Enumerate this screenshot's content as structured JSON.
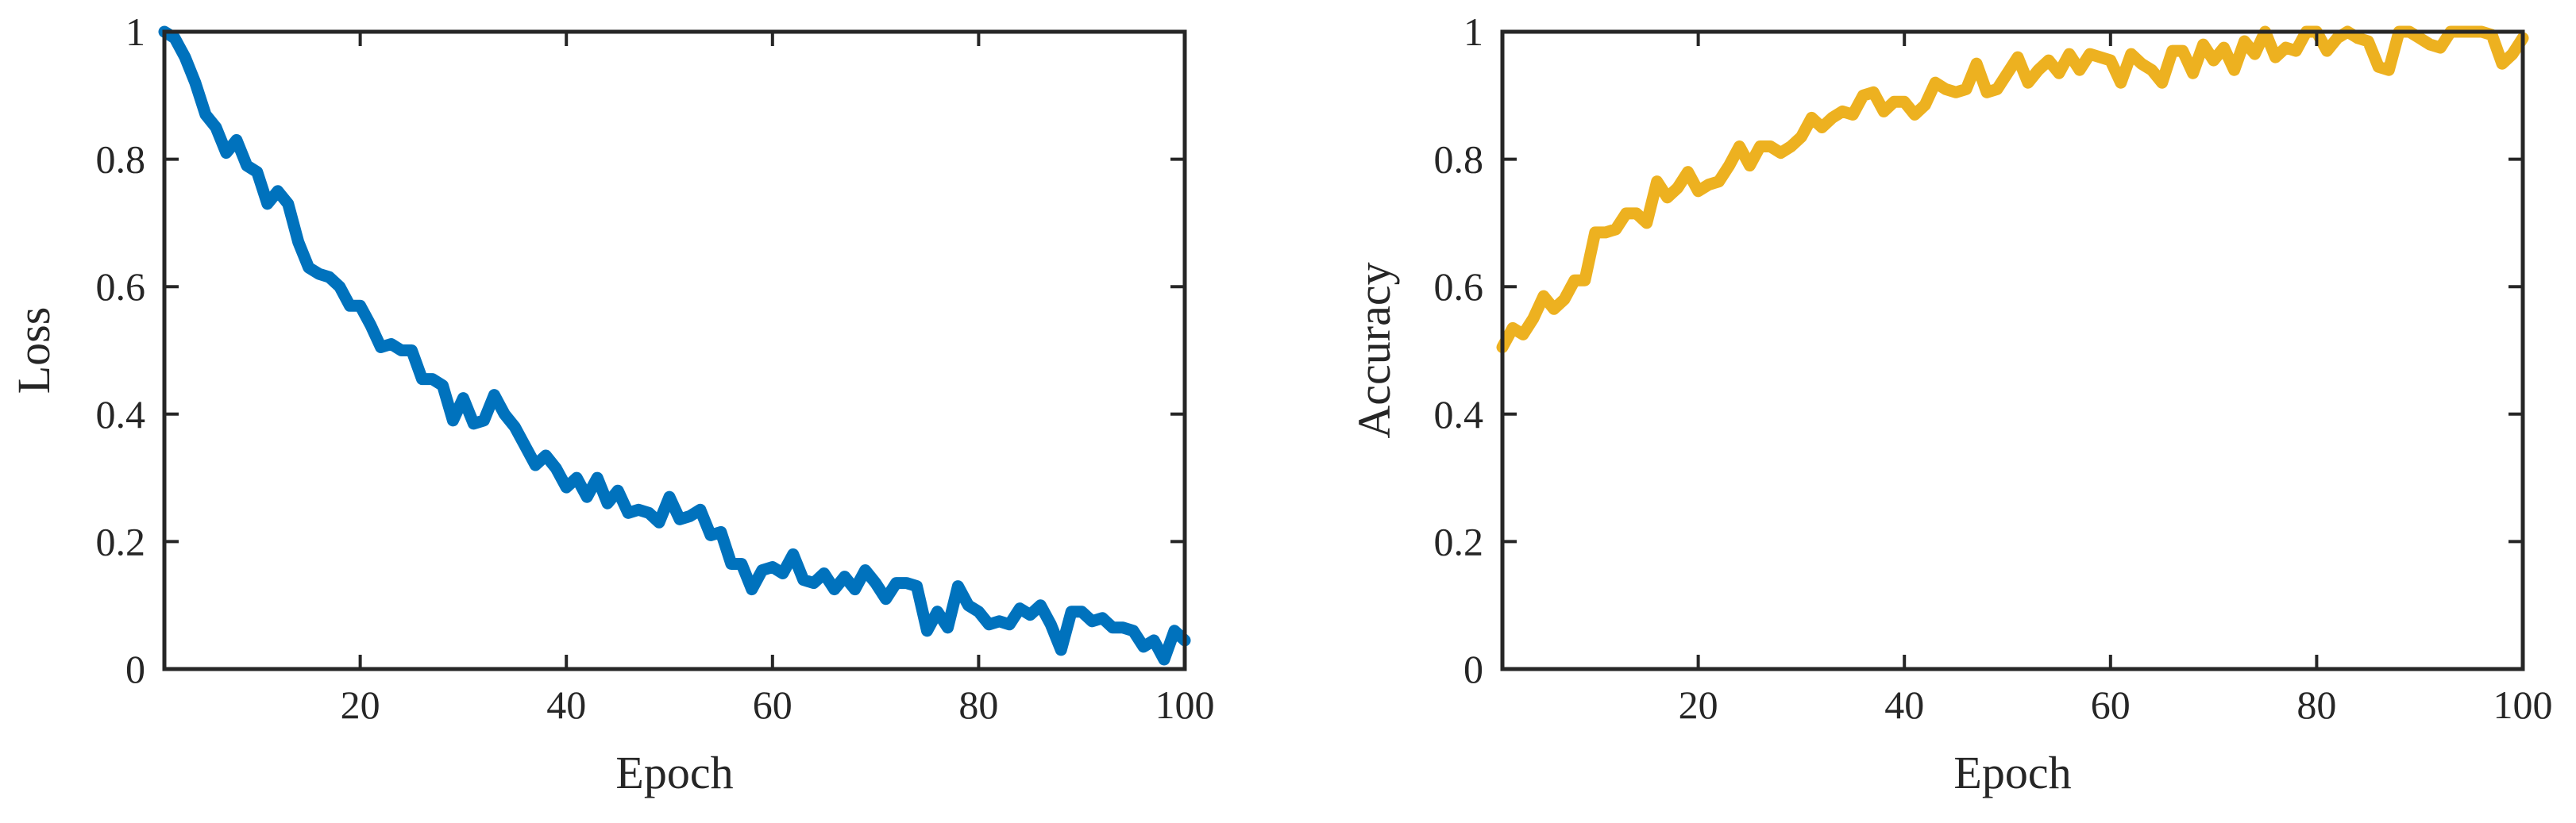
{
  "chart_data": [
    {
      "type": "line",
      "xlabel": "Epoch",
      "ylabel": "Loss",
      "xlim": [
        1,
        100
      ],
      "ylim": [
        0,
        1
      ],
      "xticks": [
        20,
        40,
        60,
        80,
        100
      ],
      "yticks": [
        0,
        0.2,
        0.4,
        0.6,
        0.8,
        1
      ],
      "ytick_labels": [
        "0",
        "0.2",
        "0.4",
        "0.6",
        "0.8",
        "1"
      ],
      "grid": false,
      "color": "#0072BD",
      "x": [
        1,
        2,
        3,
        4,
        5,
        6,
        7,
        8,
        9,
        10,
        11,
        12,
        13,
        14,
        15,
        16,
        17,
        18,
        19,
        20,
        21,
        22,
        23,
        24,
        25,
        26,
        27,
        28,
        29,
        30,
        31,
        32,
        33,
        34,
        35,
        36,
        37,
        38,
        39,
        40,
        41,
        42,
        43,
        44,
        45,
        46,
        47,
        48,
        49,
        50,
        51,
        52,
        53,
        54,
        55,
        56,
        57,
        58,
        59,
        60,
        61,
        62,
        63,
        64,
        65,
        66,
        67,
        68,
        69,
        70,
        71,
        72,
        73,
        74,
        75,
        76,
        77,
        78,
        79,
        80,
        81,
        82,
        83,
        84,
        85,
        86,
        87,
        88,
        89,
        90,
        91,
        92,
        93,
        94,
        95,
        96,
        97,
        98,
        99,
        100
      ],
      "values": [
        1.0,
        0.99,
        0.96,
        0.92,
        0.87,
        0.85,
        0.81,
        0.83,
        0.79,
        0.78,
        0.73,
        0.75,
        0.73,
        0.67,
        0.63,
        0.62,
        0.615,
        0.6,
        0.57,
        0.57,
        0.54,
        0.505,
        0.51,
        0.5,
        0.5,
        0.455,
        0.455,
        0.445,
        0.39,
        0.425,
        0.385,
        0.39,
        0.43,
        0.4,
        0.38,
        0.35,
        0.32,
        0.335,
        0.315,
        0.285,
        0.3,
        0.27,
        0.3,
        0.26,
        0.28,
        0.245,
        0.25,
        0.245,
        0.23,
        0.27,
        0.235,
        0.24,
        0.25,
        0.21,
        0.215,
        0.165,
        0.165,
        0.125,
        0.155,
        0.16,
        0.15,
        0.18,
        0.14,
        0.135,
        0.15,
        0.125,
        0.145,
        0.125,
        0.155,
        0.135,
        0.11,
        0.135,
        0.135,
        0.13,
        0.06,
        0.09,
        0.065,
        0.13,
        0.1,
        0.09,
        0.07,
        0.075,
        0.07,
        0.095,
        0.085,
        0.1,
        0.07,
        0.03,
        0.09,
        0.09,
        0.075,
        0.08,
        0.065,
        0.065,
        0.06,
        0.035,
        0.045,
        0.015,
        0.06,
        0.045
      ]
    },
    {
      "type": "line",
      "xlabel": "Epoch",
      "ylabel": "Accuracy",
      "xlim": [
        1,
        100
      ],
      "ylim": [
        0,
        1
      ],
      "xticks": [
        20,
        40,
        60,
        80,
        100
      ],
      "yticks": [
        0,
        0.2,
        0.4,
        0.6,
        0.8,
        1
      ],
      "ytick_labels": [
        "0",
        "0.2",
        "0.4",
        "0.6",
        "0.8",
        "1"
      ],
      "grid": false,
      "color": "#EDB120",
      "x": [
        1,
        2,
        3,
        4,
        5,
        6,
        7,
        8,
        9,
        10,
        11,
        12,
        13,
        14,
        15,
        16,
        17,
        18,
        19,
        20,
        21,
        22,
        23,
        24,
        25,
        26,
        27,
        28,
        29,
        30,
        31,
        32,
        33,
        34,
        35,
        36,
        37,
        38,
        39,
        40,
        41,
        42,
        43,
        44,
        45,
        46,
        47,
        48,
        49,
        50,
        51,
        52,
        53,
        54,
        55,
        56,
        57,
        58,
        59,
        60,
        61,
        62,
        63,
        64,
        65,
        66,
        67,
        68,
        69,
        70,
        71,
        72,
        73,
        74,
        75,
        76,
        77,
        78,
        79,
        80,
        81,
        82,
        83,
        84,
        85,
        86,
        87,
        88,
        89,
        90,
        91,
        92,
        93,
        94,
        95,
        96,
        97,
        98,
        99,
        100
      ],
      "values": [
        0.505,
        0.535,
        0.525,
        0.55,
        0.585,
        0.565,
        0.58,
        0.61,
        0.61,
        0.685,
        0.685,
        0.69,
        0.715,
        0.715,
        0.7,
        0.765,
        0.74,
        0.755,
        0.78,
        0.75,
        0.76,
        0.765,
        0.79,
        0.82,
        0.79,
        0.82,
        0.82,
        0.81,
        0.82,
        0.835,
        0.865,
        0.85,
        0.865,
        0.875,
        0.87,
        0.9,
        0.905,
        0.875,
        0.89,
        0.89,
        0.87,
        0.885,
        0.92,
        0.91,
        0.905,
        0.91,
        0.95,
        0.905,
        0.91,
        0.935,
        0.96,
        0.92,
        0.94,
        0.955,
        0.935,
        0.965,
        0.94,
        0.965,
        0.96,
        0.955,
        0.92,
        0.965,
        0.95,
        0.94,
        0.92,
        0.97,
        0.97,
        0.935,
        0.98,
        0.955,
        0.975,
        0.94,
        0.985,
        0.965,
        1.0,
        0.96,
        0.975,
        0.97,
        1.0,
        1.0,
        0.97,
        0.99,
        1.0,
        0.99,
        0.985,
        0.945,
        0.94,
        1.0,
        1.0,
        0.99,
        0.98,
        0.975,
        1.0,
        1.0,
        1.0,
        1.0,
        0.995,
        0.95,
        0.965,
        0.99
      ]
    }
  ]
}
